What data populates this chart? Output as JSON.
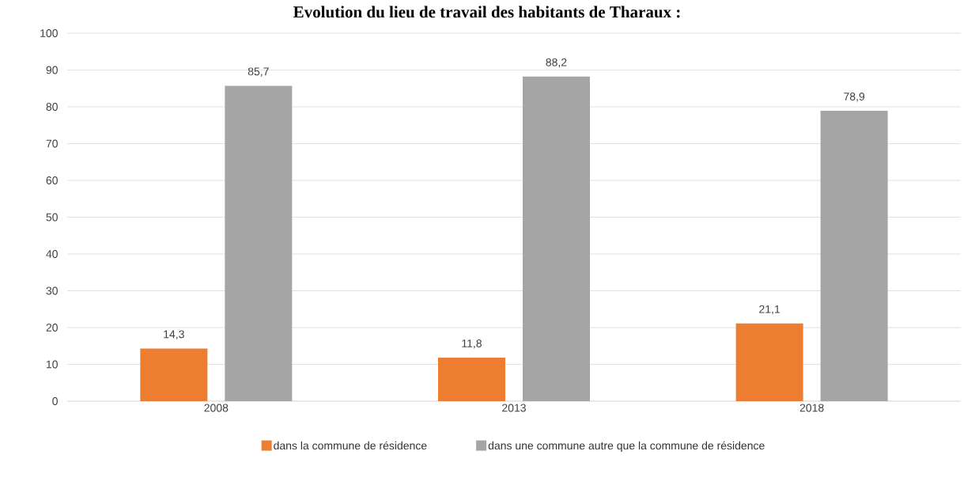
{
  "chart_data": {
    "type": "bar",
    "title": "Evolution du lieu de travail des habitants de Tharaux :",
    "categories": [
      "2008",
      "2013",
      "2018"
    ],
    "series": [
      {
        "name": "dans la commune de résidence",
        "color": "#ed7d31",
        "values": [
          14.3,
          11.8,
          21.1
        ],
        "value_labels": [
          "14,3",
          "11,8",
          "21,1"
        ]
      },
      {
        "name": "dans une commune autre que la commune de résidence",
        "color": "#a5a5a5",
        "values": [
          85.7,
          88.2,
          78.9
        ],
        "value_labels": [
          "85,7",
          "88,2",
          "78,9"
        ]
      }
    ],
    "ylim": [
      0,
      100
    ],
    "yticks": [
      0,
      10,
      20,
      30,
      40,
      50,
      60,
      70,
      80,
      90,
      100
    ],
    "grid": "y",
    "legend": "bottom"
  }
}
